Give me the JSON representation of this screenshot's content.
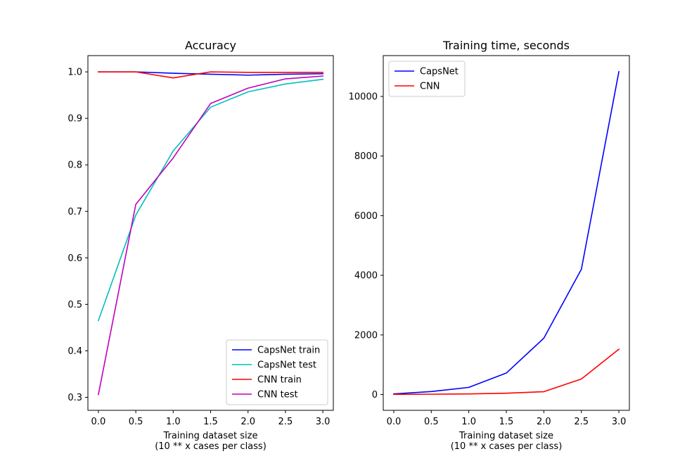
{
  "chart_data": [
    {
      "type": "line",
      "title": "Accuracy",
      "xlabel": [
        "Training dataset size",
        "(10 ** x cases per class)"
      ],
      "ylabel": "",
      "x": [
        0.0,
        0.5,
        1.0,
        1.5,
        2.0,
        2.5,
        3.0
      ],
      "xlim": [
        -0.14,
        3.14
      ],
      "ylim": [
        0.272,
        1.035
      ],
      "xticks": [
        0.0,
        0.5,
        1.0,
        1.5,
        2.0,
        2.5,
        3.0
      ],
      "xtick_labels": [
        "0.0",
        "0.5",
        "1.0",
        "1.5",
        "2.0",
        "2.5",
        "3.0"
      ],
      "yticks": [
        0.3,
        0.4,
        0.5,
        0.6,
        0.7,
        0.8,
        0.9,
        1.0
      ],
      "ytick_labels": [
        "0.3",
        "0.4",
        "0.5",
        "0.6",
        "0.7",
        "0.8",
        "0.9",
        "1.0"
      ],
      "legend_position": "lower-right",
      "grid": false,
      "series": [
        {
          "name": "CapsNet train",
          "color": "#0000ff",
          "values": [
            1.0,
            1.0,
            0.997,
            0.995,
            0.993,
            0.995,
            0.996
          ]
        },
        {
          "name": "CapsNet test",
          "color": "#00bfbf",
          "values": [
            0.465,
            0.692,
            0.83,
            0.924,
            0.957,
            0.974,
            0.984
          ]
        },
        {
          "name": "CNN train",
          "color": "#ff0000",
          "values": [
            1.0,
            1.0,
            0.987,
            1.0,
            0.999,
            0.999,
            0.999
          ]
        },
        {
          "name": "CNN test",
          "color": "#bf00bf",
          "values": [
            0.306,
            0.715,
            0.815,
            0.932,
            0.965,
            0.985,
            0.991
          ]
        }
      ]
    },
    {
      "type": "line",
      "title": "Training time, seconds",
      "xlabel": [
        "Training dataset size",
        "(10 ** x cases per class)"
      ],
      "ylabel": "",
      "x": [
        0.0,
        0.5,
        1.0,
        1.5,
        2.0,
        2.5,
        3.0
      ],
      "xlim": [
        -0.14,
        3.14
      ],
      "ylim": [
        -530,
        11370
      ],
      "xticks": [
        0.0,
        0.5,
        1.0,
        1.5,
        2.0,
        2.5,
        3.0
      ],
      "xtick_labels": [
        "0.0",
        "0.5",
        "1.0",
        "1.5",
        "2.0",
        "2.5",
        "3.0"
      ],
      "yticks": [
        0,
        2000,
        4000,
        6000,
        8000,
        10000
      ],
      "ytick_labels": [
        "0",
        "2000",
        "4000",
        "6000",
        "8000",
        "10000"
      ],
      "legend_position": "upper-left",
      "grid": false,
      "series": [
        {
          "name": "CapsNet",
          "color": "#0000ff",
          "values": [
            20,
            100,
            240,
            720,
            1890,
            4200,
            10830
          ]
        },
        {
          "name": "CNN",
          "color": "#ff0000",
          "values": [
            5,
            10,
            20,
            45,
            95,
            520,
            1520
          ]
        }
      ]
    }
  ]
}
